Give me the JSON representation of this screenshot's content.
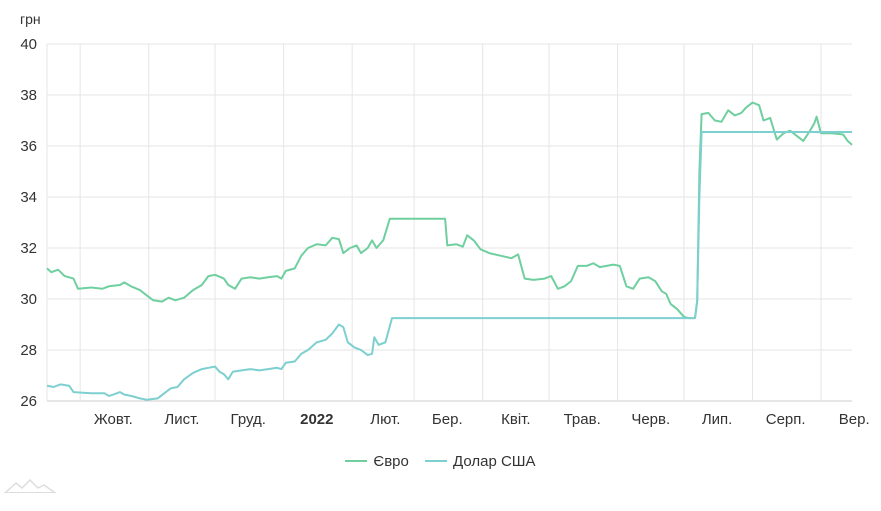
{
  "chart_data": {
    "type": "line",
    "unit_label": "грн",
    "ylim": [
      26,
      40
    ],
    "yticks": [
      26,
      28,
      30,
      32,
      34,
      36,
      38,
      40
    ],
    "xlim": [
      0,
      364
    ],
    "month_labels": [
      {
        "label": "Жовт.",
        "day": 15,
        "bold": false
      },
      {
        "label": "Лист.",
        "day": 46,
        "bold": false
      },
      {
        "label": "Груд.",
        "day": 76,
        "bold": false
      },
      {
        "label": "2022",
        "day": 107,
        "bold": true
      },
      {
        "label": "Лют.",
        "day": 138,
        "bold": false
      },
      {
        "label": "Бер.",
        "day": 166,
        "bold": false
      },
      {
        "label": "Квіт.",
        "day": 197,
        "bold": false
      },
      {
        "label": "Трав.",
        "day": 227,
        "bold": false
      },
      {
        "label": "Черв.",
        "day": 258,
        "bold": false
      },
      {
        "label": "Лип.",
        "day": 288,
        "bold": false
      },
      {
        "label": "Серп.",
        "day": 319,
        "bold": false
      },
      {
        "label": "Вер.",
        "day": 350,
        "bold": false
      }
    ],
    "grid": true,
    "legend_position": "bottom",
    "series": [
      {
        "name": "Євро",
        "color": "#6fcf9f",
        "points": [
          [
            0,
            31.2
          ],
          [
            2,
            31.05
          ],
          [
            5,
            31.15
          ],
          [
            8,
            30.9
          ],
          [
            12,
            30.8
          ],
          [
            14,
            30.4
          ],
          [
            20,
            30.45
          ],
          [
            25,
            30.4
          ],
          [
            28,
            30.5
          ],
          [
            33,
            30.55
          ],
          [
            35,
            30.65
          ],
          [
            38,
            30.5
          ],
          [
            42,
            30.35
          ],
          [
            45,
            30.15
          ],
          [
            48,
            29.95
          ],
          [
            52,
            29.9
          ],
          [
            55,
            30.05
          ],
          [
            58,
            29.95
          ],
          [
            62,
            30.05
          ],
          [
            66,
            30.35
          ],
          [
            70,
            30.55
          ],
          [
            73,
            30.9
          ],
          [
            76,
            30.95
          ],
          [
            80,
            30.8
          ],
          [
            82,
            30.55
          ],
          [
            85,
            30.4
          ],
          [
            88,
            30.8
          ],
          [
            92,
            30.85
          ],
          [
            96,
            30.8
          ],
          [
            100,
            30.85
          ],
          [
            104,
            30.9
          ],
          [
            106,
            30.8
          ],
          [
            108,
            31.1
          ],
          [
            112,
            31.2
          ],
          [
            115,
            31.7
          ],
          [
            118,
            32.0
          ],
          [
            122,
            32.15
          ],
          [
            126,
            32.1
          ],
          [
            129,
            32.4
          ],
          [
            132,
            32.35
          ],
          [
            134,
            31.8
          ],
          [
            137,
            32.0
          ],
          [
            140,
            32.1
          ],
          [
            142,
            31.8
          ],
          [
            145,
            32.0
          ],
          [
            147,
            32.3
          ],
          [
            149,
            32.0
          ],
          [
            152,
            32.3
          ],
          [
            155,
            33.15
          ],
          [
            160,
            33.15
          ],
          [
            180,
            33.15
          ],
          [
            181,
            32.1
          ],
          [
            185,
            32.15
          ],
          [
            188,
            32.05
          ],
          [
            190,
            32.5
          ],
          [
            193,
            32.3
          ],
          [
            196,
            31.95
          ],
          [
            200,
            31.8
          ],
          [
            205,
            31.7
          ],
          [
            210,
            31.6
          ],
          [
            213,
            31.75
          ],
          [
            216,
            30.8
          ],
          [
            220,
            30.75
          ],
          [
            225,
            30.8
          ],
          [
            228,
            30.9
          ],
          [
            231,
            30.4
          ],
          [
            234,
            30.5
          ],
          [
            237,
            30.7
          ],
          [
            240,
            31.3
          ],
          [
            244,
            31.3
          ],
          [
            247,
            31.4
          ],
          [
            250,
            31.25
          ],
          [
            253,
            31.3
          ],
          [
            256,
            31.35
          ],
          [
            259,
            31.3
          ],
          [
            262,
            30.5
          ],
          [
            265,
            30.4
          ],
          [
            268,
            30.8
          ],
          [
            272,
            30.85
          ],
          [
            275,
            30.7
          ],
          [
            278,
            30.3
          ],
          [
            280,
            30.2
          ],
          [
            282,
            29.8
          ],
          [
            285,
            29.6
          ],
          [
            288,
            29.3
          ],
          [
            290,
            29.25
          ],
          [
            293,
            29.25
          ],
          [
            294,
            29.9
          ],
          [
            295,
            35.0
          ],
          [
            296,
            37.25
          ],
          [
            299,
            37.3
          ],
          [
            302,
            37.0
          ],
          [
            305,
            36.95
          ],
          [
            308,
            37.4
          ],
          [
            311,
            37.2
          ],
          [
            314,
            37.3
          ],
          [
            316,
            37.5
          ],
          [
            319,
            37.7
          ],
          [
            322,
            37.6
          ],
          [
            324,
            37.0
          ],
          [
            327,
            37.1
          ],
          [
            330,
            36.25
          ],
          [
            333,
            36.5
          ],
          [
            336,
            36.6
          ],
          [
            339,
            36.4
          ],
          [
            342,
            36.2
          ],
          [
            345,
            36.6
          ],
          [
            347,
            36.9
          ],
          [
            348,
            37.15
          ],
          [
            350,
            36.5
          ],
          [
            355,
            36.5
          ],
          [
            360,
            36.45
          ],
          [
            362,
            36.2
          ],
          [
            364,
            36.05
          ]
        ]
      },
      {
        "name": "Долар США",
        "color": "#7dcfd0",
        "points": [
          [
            0,
            26.6
          ],
          [
            3,
            26.55
          ],
          [
            6,
            26.65
          ],
          [
            10,
            26.6
          ],
          [
            12,
            26.35
          ],
          [
            20,
            26.3
          ],
          [
            26,
            26.3
          ],
          [
            28,
            26.2
          ],
          [
            30,
            26.25
          ],
          [
            33,
            26.35
          ],
          [
            35,
            26.25
          ],
          [
            38,
            26.2
          ],
          [
            42,
            26.1
          ],
          [
            45,
            26.05
          ],
          [
            50,
            26.1
          ],
          [
            53,
            26.3
          ],
          [
            56,
            26.5
          ],
          [
            59,
            26.55
          ],
          [
            62,
            26.85
          ],
          [
            66,
            27.1
          ],
          [
            70,
            27.25
          ],
          [
            73,
            27.3
          ],
          [
            76,
            27.35
          ],
          [
            78,
            27.15
          ],
          [
            80,
            27.05
          ],
          [
            82,
            26.85
          ],
          [
            84,
            27.15
          ],
          [
            88,
            27.2
          ],
          [
            92,
            27.25
          ],
          [
            96,
            27.2
          ],
          [
            100,
            27.25
          ],
          [
            104,
            27.3
          ],
          [
            106,
            27.25
          ],
          [
            108,
            27.5
          ],
          [
            112,
            27.55
          ],
          [
            115,
            27.85
          ],
          [
            118,
            28.0
          ],
          [
            122,
            28.3
          ],
          [
            126,
            28.4
          ],
          [
            129,
            28.65
          ],
          [
            132,
            29.0
          ],
          [
            134,
            28.9
          ],
          [
            136,
            28.3
          ],
          [
            139,
            28.1
          ],
          [
            142,
            28.0
          ],
          [
            145,
            27.8
          ],
          [
            147,
            27.85
          ],
          [
            148,
            28.5
          ],
          [
            150,
            28.2
          ],
          [
            153,
            28.3
          ],
          [
            156,
            29.25
          ],
          [
            160,
            29.25
          ],
          [
            200,
            29.25
          ],
          [
            250,
            29.25
          ],
          [
            293,
            29.25
          ],
          [
            294,
            29.95
          ],
          [
            295,
            34.0
          ],
          [
            296,
            36.55
          ],
          [
            300,
            36.55
          ],
          [
            320,
            36.55
          ],
          [
            340,
            36.55
          ],
          [
            364,
            36.55
          ]
        ]
      }
    ]
  }
}
